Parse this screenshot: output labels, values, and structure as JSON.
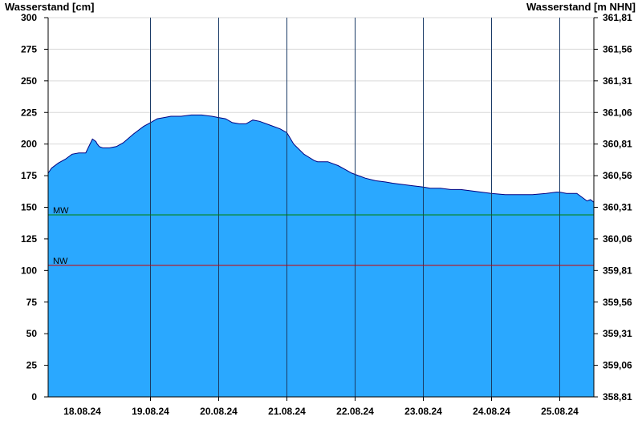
{
  "chart_data": {
    "type": "area",
    "ylabel_left": "Wasserstand [cm]",
    "ylabel_right": "Wasserstand [m NHN]",
    "ylim": [
      0,
      300
    ],
    "y_ticks": [
      0,
      25,
      50,
      75,
      100,
      125,
      150,
      175,
      200,
      225,
      250,
      275,
      300
    ],
    "y_right_ticks": [
      "358,81",
      "359,06",
      "359,31",
      "359,56",
      "359,81",
      "360,06",
      "360,31",
      "360,56",
      "360,81",
      "361,06",
      "361,31",
      "361,56",
      "361,81"
    ],
    "x_range_days": [
      17.5,
      25.5
    ],
    "x_ticks": [
      "18.08.24",
      "19.08.24",
      "20.08.24",
      "21.08.24",
      "22.08.24",
      "23.08.24",
      "24.08.24",
      "25.08.24"
    ],
    "grid": true,
    "fill_color": "#2aa8ff",
    "line_color": "#000080",
    "reference_lines": [
      {
        "name": "MW",
        "value": 144,
        "color": "#008000"
      },
      {
        "name": "NW",
        "value": 104,
        "color": "#cc0000"
      }
    ],
    "series": [
      {
        "x": [
          17.5,
          17.55,
          17.65,
          17.75,
          17.85,
          17.95,
          18.05,
          18.15,
          18.2,
          18.22,
          18.25,
          18.3,
          18.35,
          18.4,
          18.5,
          18.6,
          18.75,
          18.9,
          19.0,
          19.1,
          19.2,
          19.3,
          19.45,
          19.6,
          19.75,
          19.9,
          20.0,
          20.1,
          20.2,
          20.3,
          20.4,
          20.5,
          20.6,
          20.75,
          20.9,
          21.0,
          21.1,
          21.25,
          21.4,
          21.45,
          21.55,
          21.6,
          21.65,
          21.75,
          21.85,
          21.95,
          22.0,
          22.05,
          22.15,
          22.3,
          22.45,
          22.55,
          22.7,
          22.85,
          23.0,
          23.1,
          23.25,
          23.4,
          23.55,
          23.7,
          23.85,
          24.0,
          24.2,
          24.4,
          24.6,
          24.8,
          24.95,
          25.0,
          25.1,
          25.25,
          25.4,
          25.45,
          25.5
        ],
        "y": [
          177,
          181,
          185,
          188,
          192,
          193,
          193,
          204,
          202,
          200,
          198,
          197,
          197,
          197,
          198,
          201,
          208,
          214,
          217,
          220,
          221,
          222,
          222,
          223,
          223,
          222,
          221,
          220,
          217,
          216,
          216,
          219,
          218,
          215,
          212,
          209,
          200,
          192,
          187,
          186,
          186,
          186,
          185,
          183,
          180,
          177,
          176,
          175,
          173,
          171,
          170,
          169,
          168,
          167,
          166,
          165,
          165,
          164,
          164,
          163,
          162,
          161,
          160,
          160,
          160,
          161,
          162,
          162,
          161,
          161,
          155,
          156,
          154
        ]
      }
    ]
  }
}
